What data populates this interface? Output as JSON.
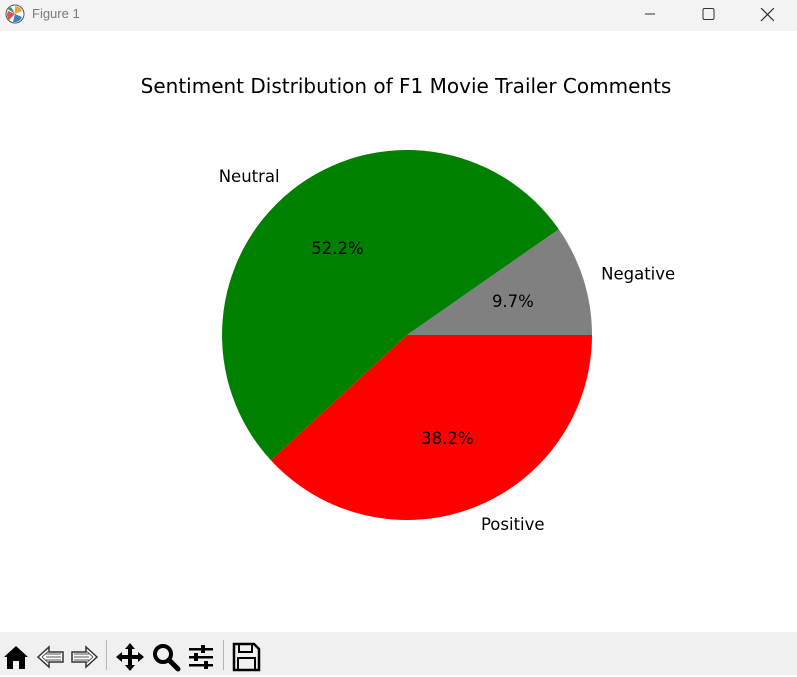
{
  "window": {
    "title": "Figure 1"
  },
  "chart_data": {
    "type": "pie",
    "title": "Sentiment Distribution of F1 Movie Trailer Comments",
    "slices": [
      {
        "label": "Negative",
        "value": 9.7,
        "pct_label": "9.7%",
        "color": "#808080"
      },
      {
        "label": "Neutral",
        "value": 52.2,
        "pct_label": "52.2%",
        "color": "#008000"
      },
      {
        "label": "Positive",
        "value": 38.2,
        "pct_label": "38.2%",
        "color": "#ff0000"
      }
    ],
    "start_angle_deg": 0,
    "direction": "counterclockwise"
  },
  "toolbar": {
    "items": [
      {
        "name": "home-icon"
      },
      {
        "name": "back-arrow-icon"
      },
      {
        "name": "forward-arrow-icon"
      },
      {
        "name": "pan-icon"
      },
      {
        "name": "zoom-icon"
      },
      {
        "name": "configure-subplots-icon"
      },
      {
        "name": "save-icon"
      }
    ]
  }
}
